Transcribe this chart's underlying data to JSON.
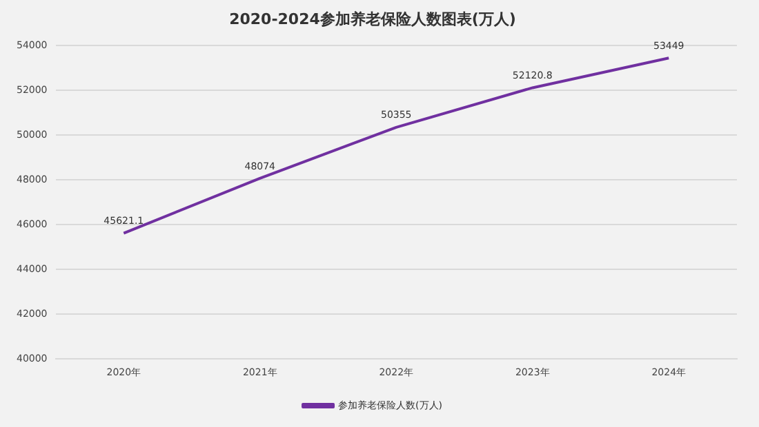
{
  "chart_data": {
    "type": "line",
    "title": "2020-2024参加养老保险人数图表(万人)",
    "categories": [
      "2020年",
      "2021年",
      "2022年",
      "2023年",
      "2024年"
    ],
    "series": [
      {
        "name": "参加养老保险人数(万人)",
        "color": "#7030a0",
        "values": [
          45621.1,
          48074,
          50355,
          52120.8,
          53449
        ]
      }
    ],
    "ylim": [
      40000,
      54000
    ],
    "yticks": [
      40000,
      42000,
      44000,
      46000,
      48000,
      50000,
      52000,
      54000
    ],
    "grid": "y",
    "legend": "bottom",
    "marker": "none",
    "line_style": "solid",
    "data_labels": true
  }
}
